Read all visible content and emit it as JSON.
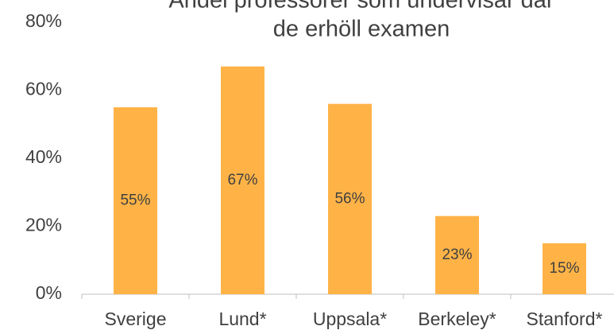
{
  "chart_data": {
    "type": "bar",
    "title": [
      "Andel professorer som undervisar där",
      "de erhöll examen"
    ],
    "categories": [
      "Sverige",
      "Lund*",
      "Uppsala*",
      "Berkeley*",
      "Stanford*"
    ],
    "values": [
      55,
      67,
      56,
      23,
      15
    ],
    "value_labels": [
      "55%",
      "67%",
      "56%",
      "23%",
      "15%"
    ],
    "color": "#ffb347",
    "ylim": [
      0,
      80
    ],
    "yticks": [
      {
        "value": 0,
        "label": "0%"
      },
      {
        "value": 20,
        "label": "20%"
      },
      {
        "value": 40,
        "label": "40%"
      },
      {
        "value": 60,
        "label": "60%"
      },
      {
        "value": 80,
        "label": "80%"
      }
    ],
    "grid": false
  }
}
